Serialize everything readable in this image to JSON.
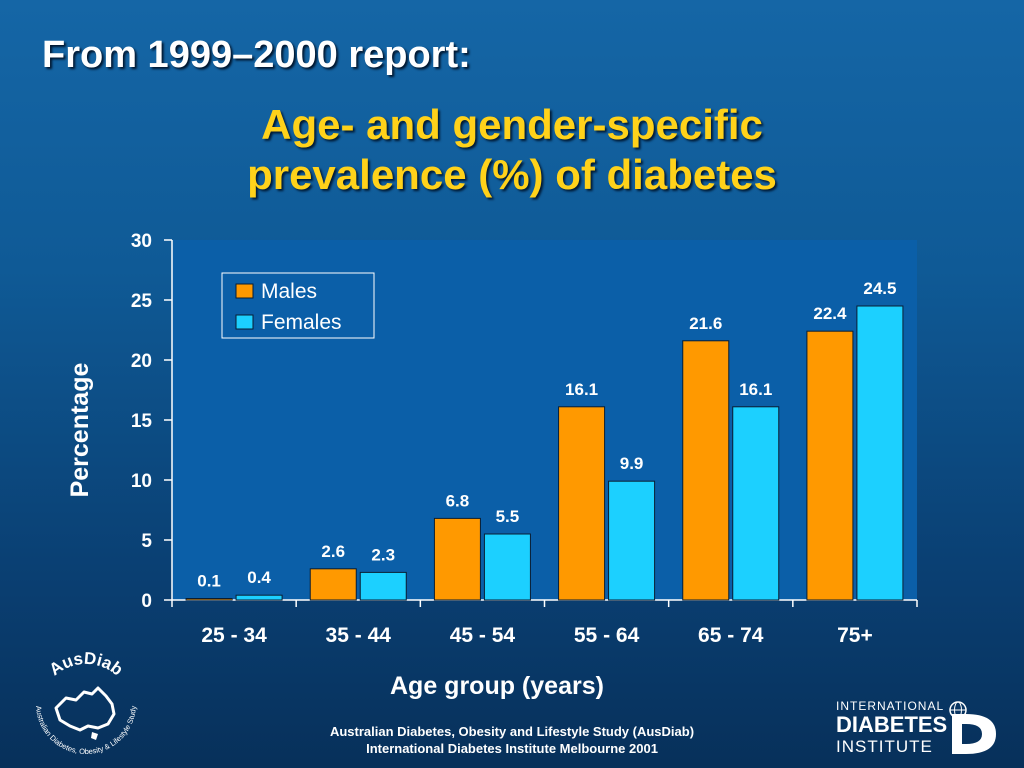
{
  "slide": {
    "header": "From 1999–2000 report:",
    "title_line1": "Age- and gender-specific",
    "title_line2": "prevalence (%) of diabetes",
    "footer_line1": "Australian Diabetes, Obesity and Lifestyle Study (AusDiab)",
    "footer_line2": "International Diabetes Institute Melbourne 2001"
  },
  "logos": {
    "ausdiab_name": "AusDiab",
    "ausdiab_subtitle": "Australian Diabetes, Obesity & Lifestyle Study",
    "idi_line1": "INTERNATIONAL",
    "idi_line2": "DIABETES",
    "idi_line3": "INSTITUTE"
  },
  "colors": {
    "males": "#ff9900",
    "females": "#1cd0ff",
    "plot_background": "#0b5fa8",
    "title": "#ffd21a"
  },
  "chart_data": {
    "type": "bar",
    "categories": [
      "25 - 34",
      "35 - 44",
      "45 - 54",
      "55 - 64",
      "65 - 74",
      "75+"
    ],
    "series": [
      {
        "name": "Males",
        "values": [
          0.1,
          2.6,
          6.8,
          16.1,
          21.6,
          22.4
        ]
      },
      {
        "name": "Females",
        "values": [
          0.4,
          2.3,
          5.5,
          9.9,
          16.1,
          24.5
        ]
      }
    ],
    "xlabel": "Age group (years)",
    "ylabel": "Percentage",
    "ylim": [
      0,
      30
    ],
    "yticks": [
      0,
      5,
      10,
      15,
      20,
      25,
      30
    ],
    "legend_position": "top-left",
    "grid": false,
    "data_labels": true
  }
}
